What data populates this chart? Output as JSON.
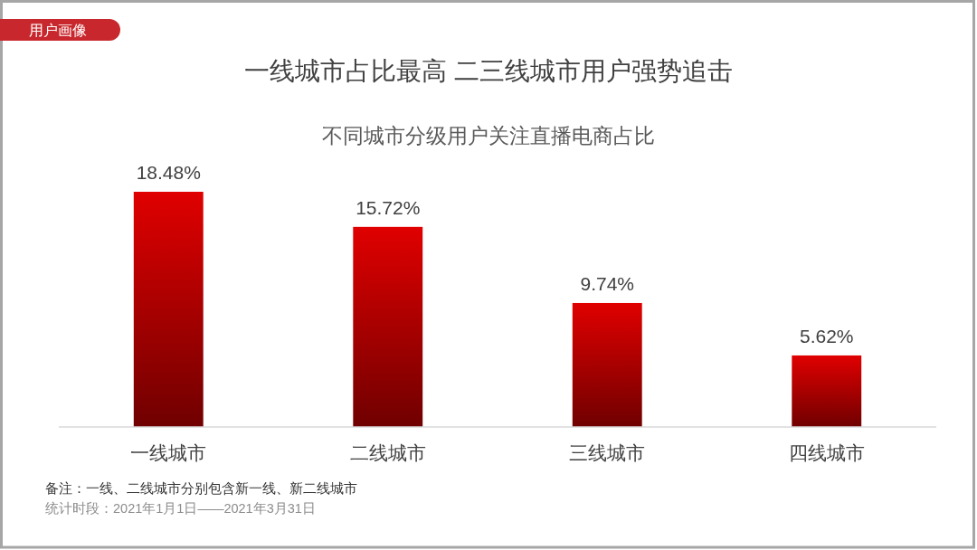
{
  "chart_data": {
    "type": "bar",
    "title": "一线城市占比最高 二三线城市用户强势追击",
    "subtitle": "不同城市分级用户关注直播电商占比",
    "categories": [
      "一线城市",
      "二线城市",
      "三线城市",
      "四线城市"
    ],
    "values": [
      18.48,
      15.72,
      9.74,
      5.62
    ],
    "value_labels": [
      "18.48%",
      "15.72%",
      "9.74%",
      "5.62%"
    ],
    "color": "#e00000",
    "annotations": [
      "用户画像",
      "备注：一线、二线城市分别包含新一线、新二线城市",
      "统计时段：2021年1月1日——2021年3月31日"
    ]
  }
}
